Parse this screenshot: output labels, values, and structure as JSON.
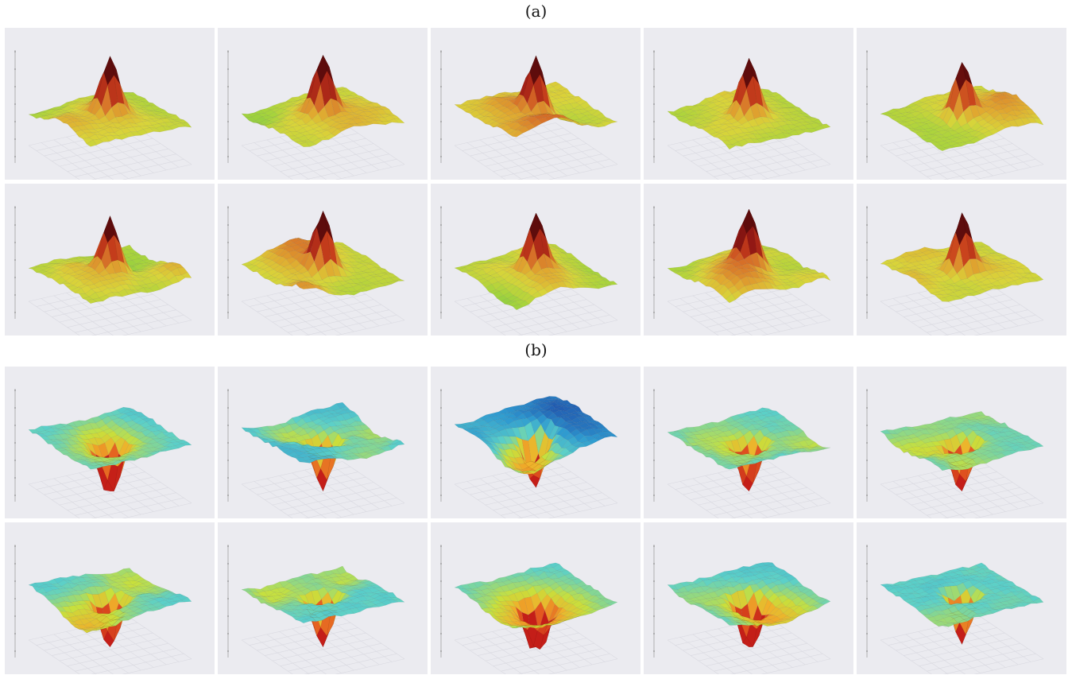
{
  "figure": {
    "label_a": "(a)",
    "label_b": "(b)"
  },
  "colors": {
    "panel_bg": "#ebebf0",
    "gridline": "#d9d9e0",
    "peak_scale": [
      "#5e0c0c",
      "#9b1a15",
      "#c8401c",
      "#d8782a",
      "#e0a830",
      "#d9d43a",
      "#a8d43c",
      "#78c846"
    ],
    "valley_scale": [
      "#101e6e",
      "#1e4aa8",
      "#2e9ad0",
      "#5cd0c8",
      "#c8e03c",
      "#f0b02a",
      "#e45a20",
      "#c41e18"
    ]
  },
  "chart_data": [
    {
      "type": "surface3d",
      "group": "(a)",
      "shape": "peak",
      "panels": 10,
      "rows": 2,
      "cols": 5,
      "colorscale": "green-yellow-red-dark",
      "panel_params": [
        {
          "seed": 1,
          "base": 0.25,
          "bumps": 0.35
        },
        {
          "seed": 2,
          "base": 0.4,
          "bumps": 0.45
        },
        {
          "seed": 3,
          "base": 0.55,
          "bumps": 0.5
        },
        {
          "seed": 4,
          "base": 0.3,
          "bumps": 0.35
        },
        {
          "seed": 5,
          "base": 0.3,
          "bumps": 0.3
        },
        {
          "seed": 6,
          "base": 0.3,
          "bumps": 0.4
        },
        {
          "seed": 7,
          "base": 0.4,
          "bumps": 0.45
        },
        {
          "seed": 8,
          "base": 0.25,
          "bumps": 0.4
        },
        {
          "seed": 9,
          "base": 0.25,
          "bumps": 0.55
        },
        {
          "seed": 10,
          "base": 0.45,
          "bumps": 0.3
        }
      ]
    },
    {
      "type": "surface3d",
      "group": "(b)",
      "shape": "valley",
      "panels": 10,
      "rows": 2,
      "cols": 5,
      "colorscale": "jet",
      "panel_params": [
        {
          "seed": 11,
          "base": 0.85,
          "bumps": 0.25
        },
        {
          "seed": 12,
          "base": 0.7,
          "bumps": 0.4
        },
        {
          "seed": 13,
          "base": 0.55,
          "bumps": 0.45
        },
        {
          "seed": 14,
          "base": 0.85,
          "bumps": 0.25
        },
        {
          "seed": 15,
          "base": 0.9,
          "bumps": 0.2
        },
        {
          "seed": 16,
          "base": 0.85,
          "bumps": 0.25
        },
        {
          "seed": 17,
          "base": 0.85,
          "bumps": 0.25
        },
        {
          "seed": 18,
          "base": 0.85,
          "bumps": 0.3
        },
        {
          "seed": 19,
          "base": 0.8,
          "bumps": 0.35
        },
        {
          "seed": 20,
          "base": 0.88,
          "bumps": 0.22
        }
      ]
    }
  ]
}
